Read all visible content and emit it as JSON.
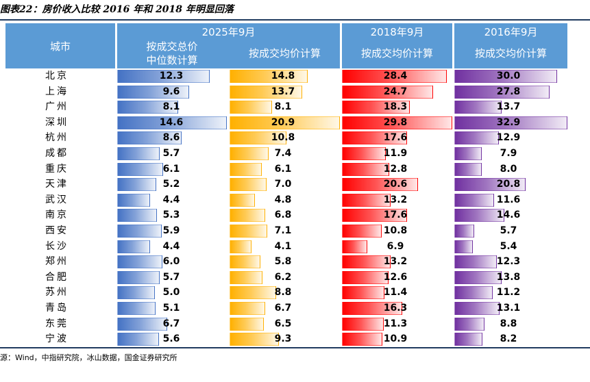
{
  "caption": "图表22：房价收入比较 2016 年和 2018 年明显回落",
  "header": {
    "city_label": "城市",
    "group_2025": "2025年9月",
    "col_2025_total_line1": "按成交总价",
    "col_2025_total_line2": "中位数计算",
    "col_2025_unit": "按成交均价计算",
    "group_2018": "2018年9月",
    "col_2018_unit": "按成交均价计算",
    "group_2016": "2016年9月",
    "col_2016_unit": "按成交均价计算"
  },
  "colors": {
    "header_bg": "#5b9bd5",
    "header_text": "#ffffff",
    "bar_2025_total": "#4472c4",
    "bar_2025_unit": "#ffb000",
    "bar_2018": "#ff0000",
    "bar_2016": "#7030a0"
  },
  "source": "源：Wind，中指研究院，冰山数据，国金证券研究所",
  "chart_data": {
    "type": "table",
    "categories": [
      "北京",
      "上海",
      "广州",
      "深圳",
      "杭州",
      "成都",
      "重庆",
      "天津",
      "武汉",
      "南京",
      "西安",
      "长沙",
      "郑州",
      "合肥",
      "苏州",
      "青岛",
      "东莞",
      "宁波"
    ],
    "series": [
      {
        "name": "2025年9月 按成交总价中位数计算",
        "values": [
          12.3,
          9.6,
          8.1,
          14.6,
          8.6,
          5.7,
          6.1,
          5.2,
          4.4,
          5.3,
          5.9,
          4.4,
          6.0,
          5.7,
          5.0,
          5.1,
          6.7,
          5.6
        ]
      },
      {
        "name": "2025年9月 按成交均价计算",
        "values": [
          14.8,
          13.7,
          8.1,
          20.9,
          10.8,
          7.4,
          6.1,
          7.0,
          4.8,
          6.8,
          7.1,
          4.1,
          5.8,
          6.2,
          8.8,
          6.7,
          6.5,
          9.3
        ]
      },
      {
        "name": "2018年9月 按成交均价计算",
        "values": [
          28.4,
          24.7,
          18.3,
          29.8,
          17.6,
          11.9,
          12.8,
          20.6,
          13.2,
          17.6,
          10.8,
          6.9,
          13.2,
          12.6,
          11.4,
          16.3,
          11.3,
          10.9
        ]
      },
      {
        "name": "2016年9月 按成交均价计算",
        "values": [
          30.0,
          27.8,
          13.7,
          32.9,
          12.9,
          7.9,
          8.0,
          20.8,
          11.6,
          14.6,
          5.7,
          5.4,
          12.3,
          13.8,
          11.2,
          13.1,
          8.8,
          8.2
        ]
      }
    ]
  }
}
